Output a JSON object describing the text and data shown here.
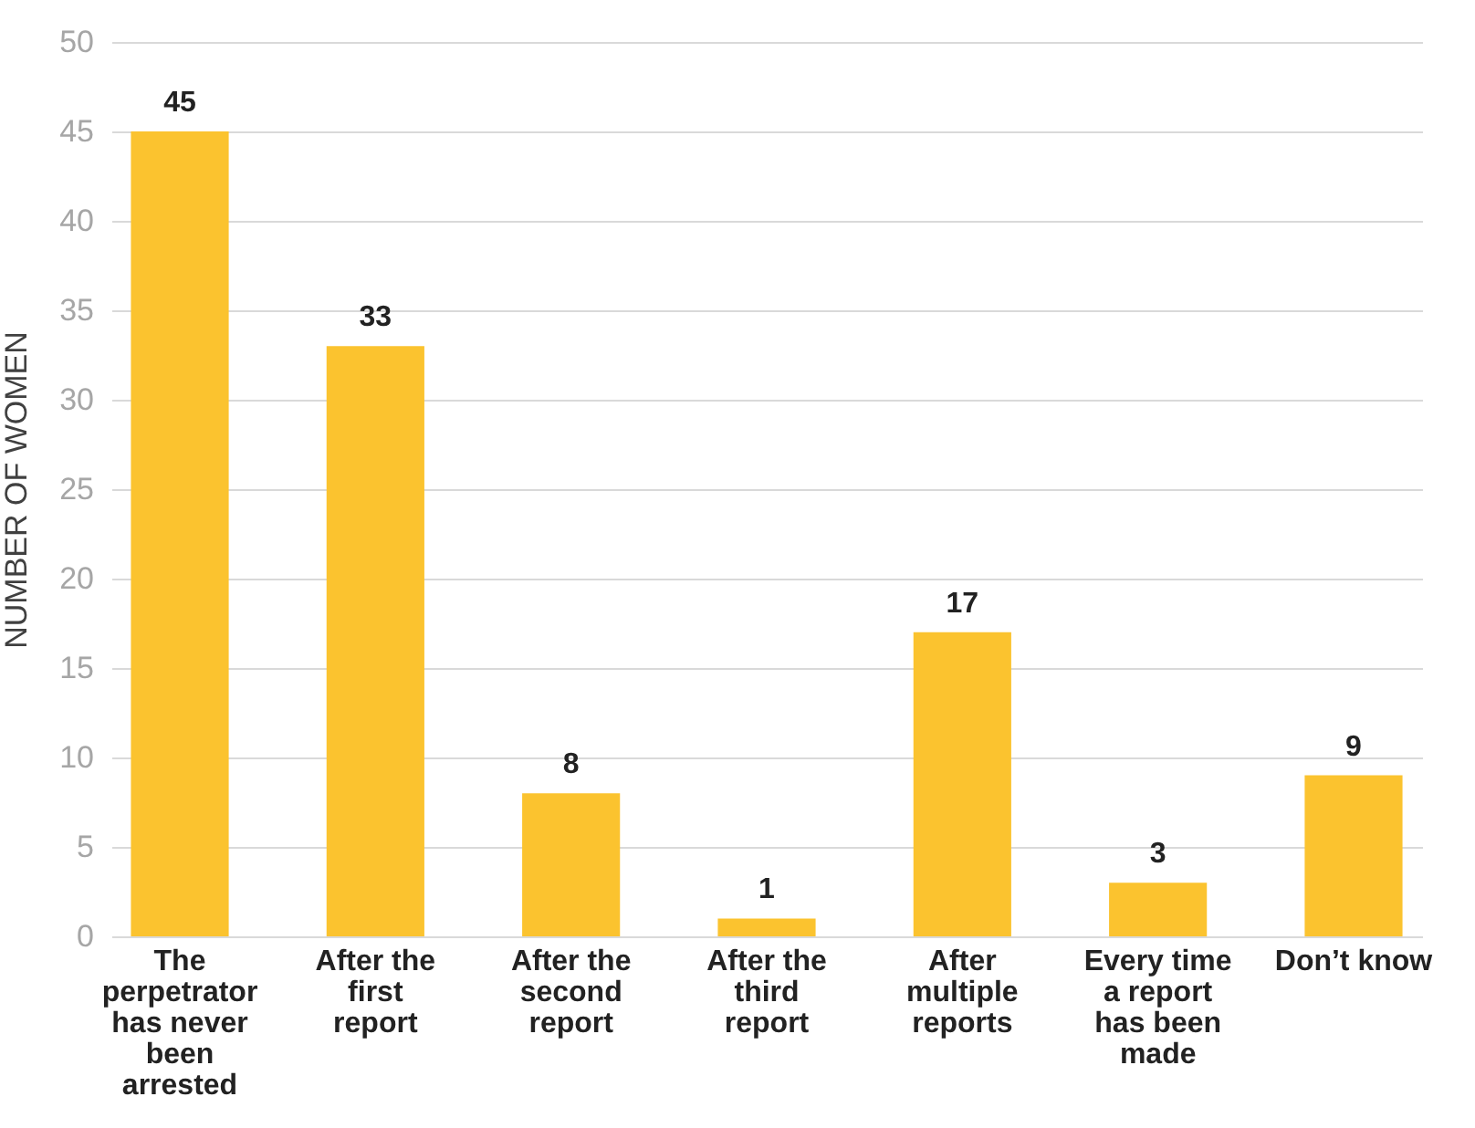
{
  "chart_data": {
    "type": "bar",
    "ylabel": "NUMBER OF WOMEN",
    "categories": [
      "The perpetrator has never been arrested",
      "After the first report",
      "After the second report",
      "After the third report",
      "After multiple reports",
      "Every time a report has been made",
      "Don’t know"
    ],
    "values": [
      45,
      33,
      8,
      1,
      17,
      3,
      9
    ],
    "color": "#fbc32f",
    "data_labels": true,
    "ylim": [
      0,
      50
    ],
    "yticks": [
      0,
      5,
      10,
      15,
      20,
      25,
      30,
      35,
      40,
      45,
      50
    ],
    "grid": "y"
  }
}
